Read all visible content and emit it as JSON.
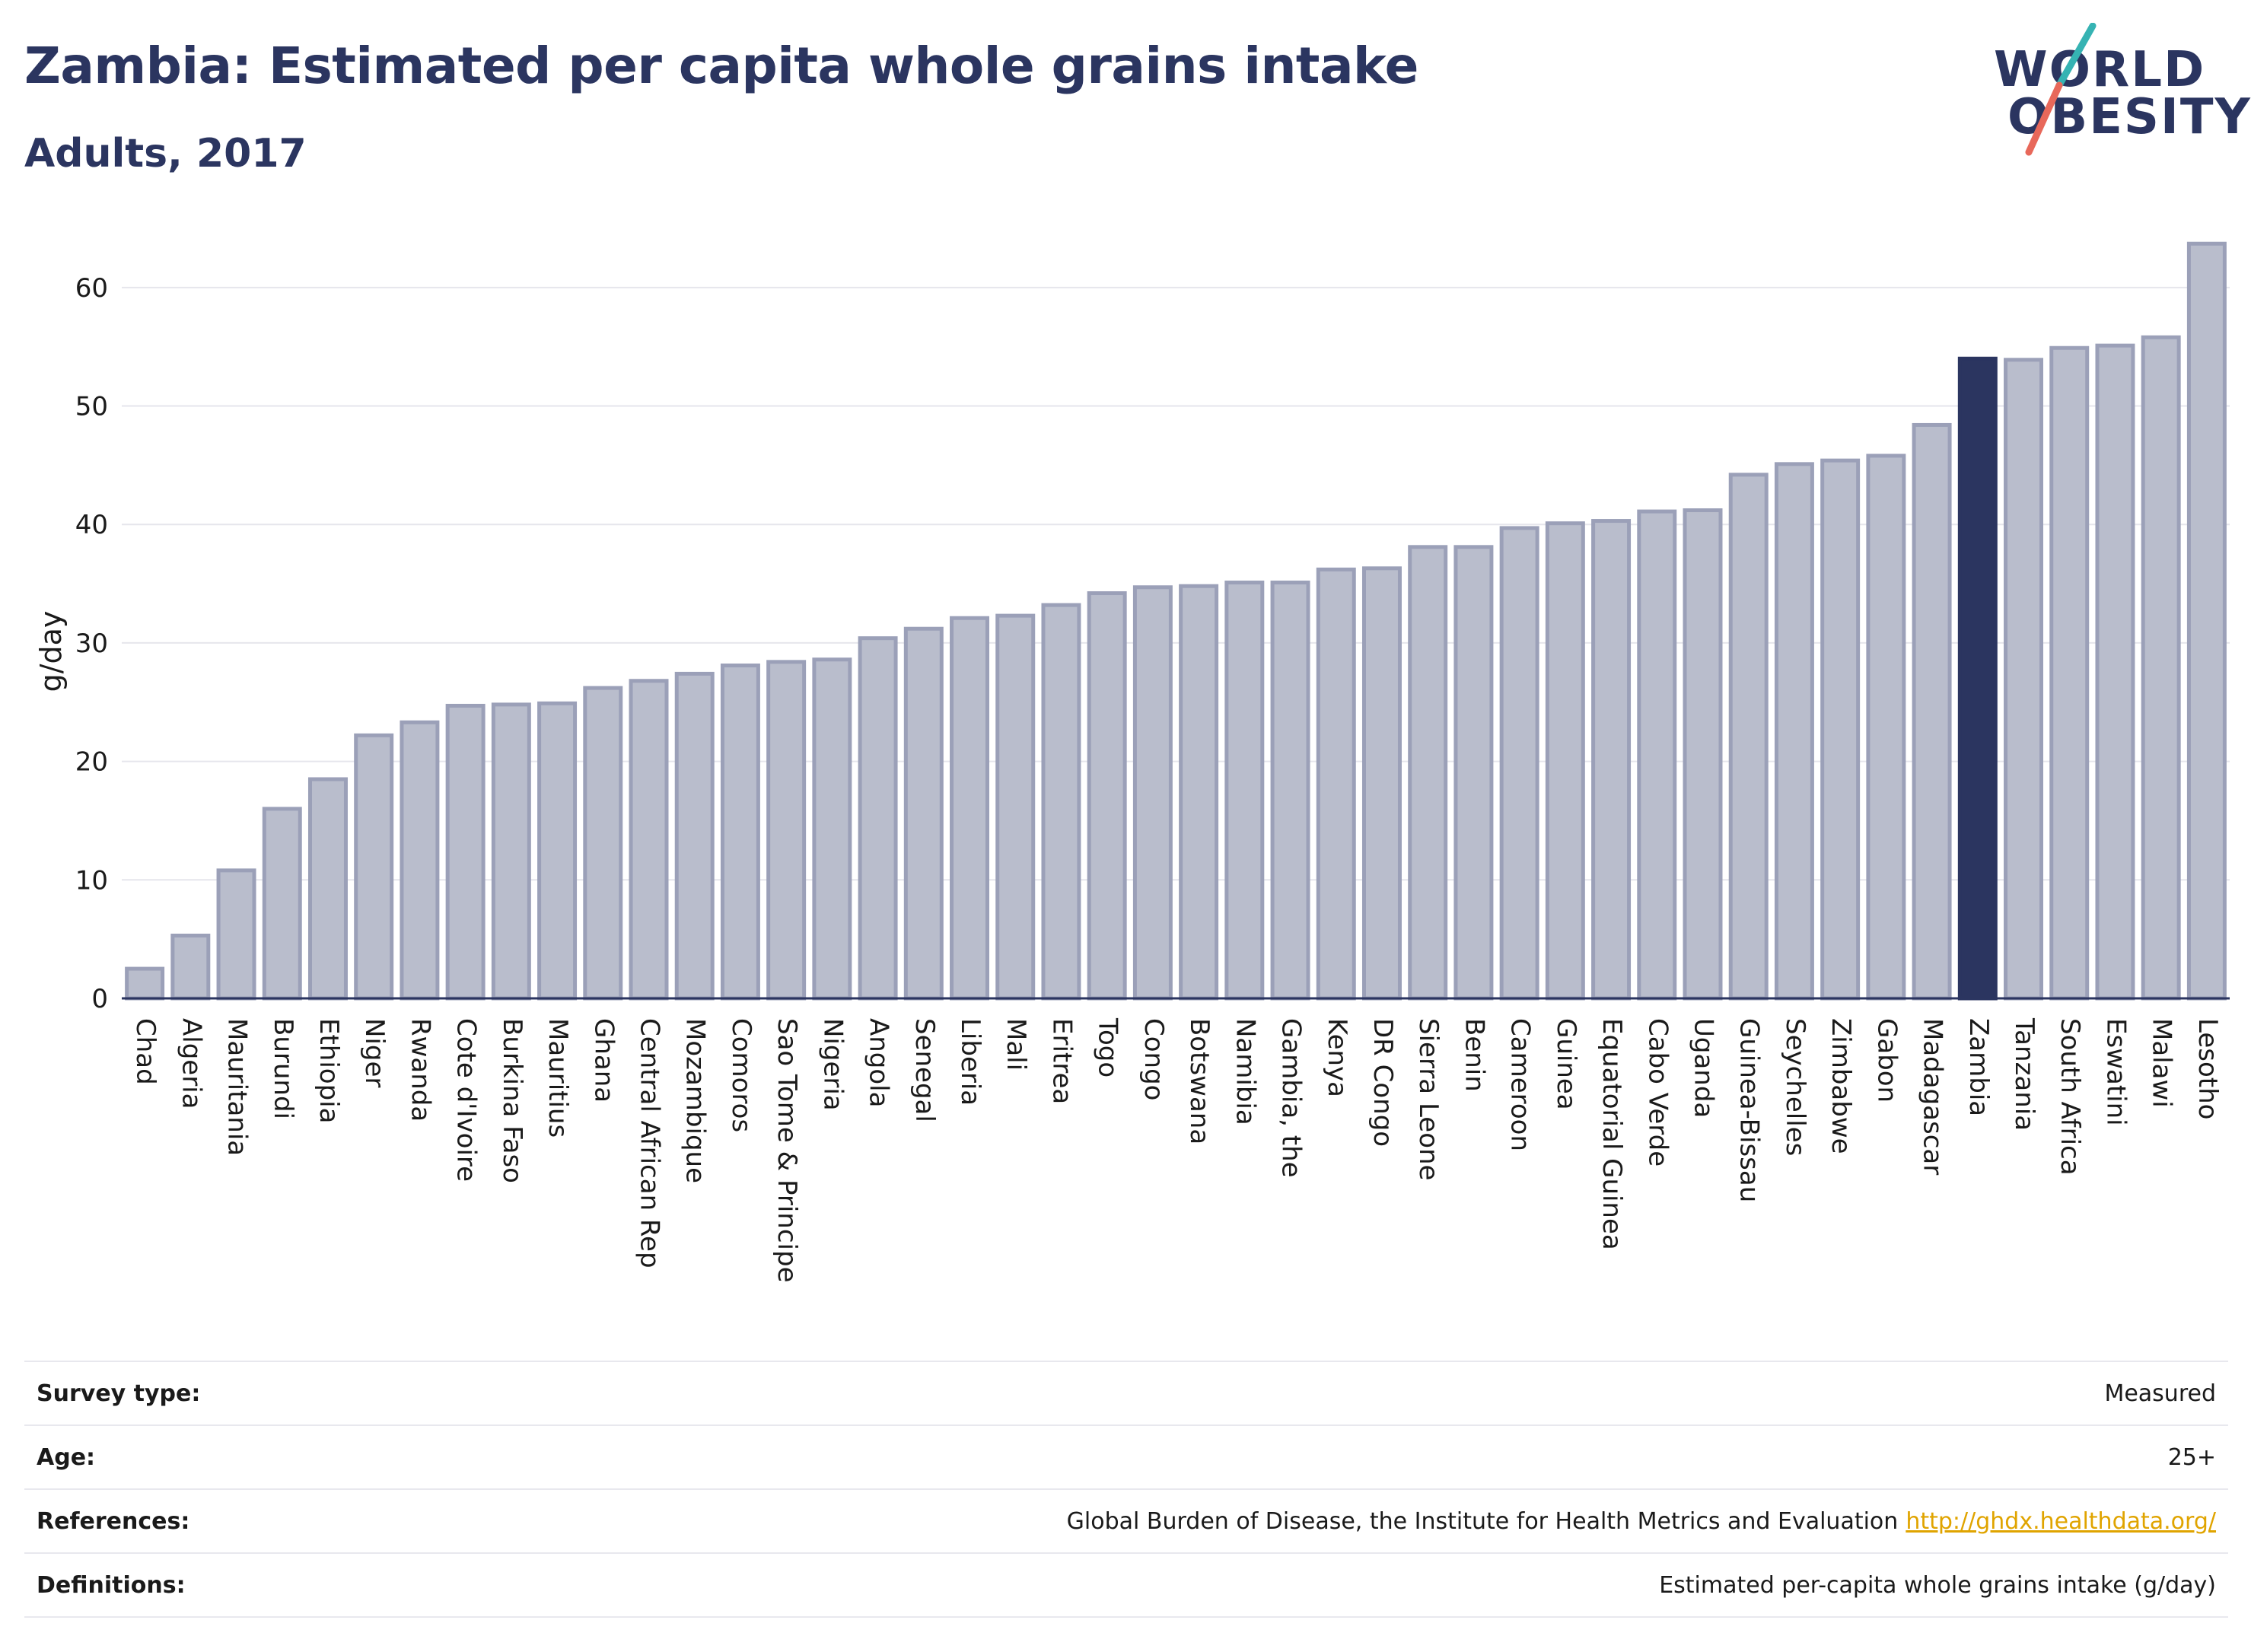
{
  "header": {
    "title": "Zambia: Estimated per capita whole grains intake",
    "subtitle": "Adults, 2017"
  },
  "logo": {
    "line1": "WORLD",
    "line2": "OBESITY",
    "colors": {
      "text": "#2b3560",
      "slash_top": "#36b3b3",
      "slash_bottom": "#e8685a"
    }
  },
  "chart_data": {
    "type": "bar",
    "ylabel": "g/day",
    "xlabel": "",
    "ylim": [
      0,
      65
    ],
    "yticks": [
      0,
      10,
      20,
      30,
      40,
      50,
      60
    ],
    "grid": true,
    "highlight": "Zambia",
    "colors": {
      "bar": "#b9bdcc",
      "bar_border": "#9ba0b8",
      "highlight": "#2b3560",
      "axis": "#2b3560",
      "grid": "#e6e6ec"
    },
    "categories": [
      "Chad",
      "Algeria",
      "Mauritania",
      "Burundi",
      "Ethiopia",
      "Niger",
      "Rwanda",
      "Cote d'Ivoire",
      "Burkina Faso",
      "Mauritius",
      "Ghana",
      "Central African Rep",
      "Mozambique",
      "Comoros",
      "Sao Tome & Principe",
      "Nigeria",
      "Angola",
      "Senegal",
      "Liberia",
      "Mali",
      "Eritrea",
      "Togo",
      "Congo",
      "Botswana",
      "Namibia",
      "Gambia, the",
      "Kenya",
      "DR Congo",
      "Sierra Leone",
      "Benin",
      "Cameroon",
      "Guinea",
      "Equatorial Guinea",
      "Cabo Verde",
      "Uganda",
      "Guinea-Bissau",
      "Seychelles",
      "Zimbabwe",
      "Gabon",
      "Madagascar",
      "Zambia",
      "Tanzania",
      "South Africa",
      "Eswatini",
      "Malawi",
      "Lesotho"
    ],
    "values": [
      2.5,
      5.3,
      10.8,
      16.0,
      18.5,
      22.2,
      23.3,
      24.7,
      24.8,
      24.9,
      26.2,
      26.8,
      27.4,
      28.1,
      28.4,
      28.6,
      30.4,
      31.2,
      32.1,
      32.3,
      33.2,
      34.2,
      34.7,
      34.8,
      35.1,
      35.1,
      36.2,
      36.3,
      38.1,
      38.1,
      39.7,
      40.1,
      40.3,
      41.1,
      41.2,
      44.2,
      45.1,
      45.4,
      45.8,
      48.4,
      54.0,
      53.9,
      54.9,
      55.1,
      55.8,
      63.7
    ]
  },
  "info": [
    {
      "label": "Survey type:",
      "value": "Measured"
    },
    {
      "label": "Age:",
      "value": "25+"
    },
    {
      "label": "References:",
      "value": "Global Burden of Disease, the Institute for Health Metrics and Evaluation",
      "link": "http://ghdx.healthdata.org/"
    },
    {
      "label": "Definitions:",
      "value": "Estimated per-capita whole grains intake (g/day)"
    }
  ]
}
